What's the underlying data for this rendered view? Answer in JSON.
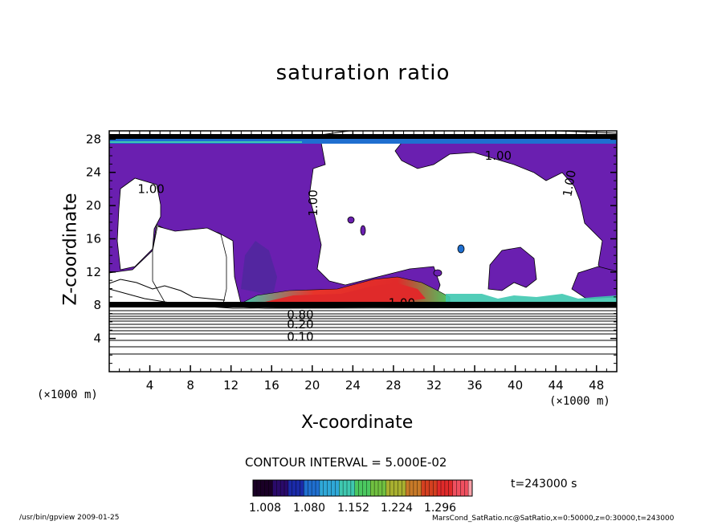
{
  "chart_data": {
    "type": "heatmap",
    "title": "saturation ratio",
    "xlabel": "X-coordinate",
    "ylabel": "Z-coordinate",
    "x_unit": "(×1000 m)",
    "y_unit": "(×1000 m)",
    "xlim": [
      0,
      50
    ],
    "ylim": [
      0,
      29
    ],
    "x_ticks": [
      "4",
      "8",
      "12",
      "16",
      "20",
      "24",
      "28",
      "32",
      "36",
      "40",
      "44",
      "48"
    ],
    "y_ticks": [
      "4",
      "8",
      "12",
      "16",
      "20",
      "24",
      "28"
    ],
    "contour_interval": "CONTOUR INTERVAL = 5.000E-02",
    "contour_labels": [
      "1.00",
      "1.00",
      "1.00",
      "1.00",
      "1.00",
      "0.80",
      "0.20",
      "0.10"
    ],
    "colorbar": {
      "ticks": [
        "1.008",
        "1.080",
        "1.152",
        "1.224",
        "1.296"
      ],
      "colors": [
        "#1a0026",
        "#2a0a6a",
        "#1a2aa8",
        "#1f6fd0",
        "#2fa8d8",
        "#3fc8b0",
        "#4bc860",
        "#70c040",
        "#a8b030",
        "#c87a28",
        "#d44020",
        "#e02a2a",
        "#f05060",
        "#f8a0a8"
      ]
    },
    "time_label": "t=243000 s",
    "colors": {
      "purple_region": "#6a1fb0",
      "hot_region": "#e8342a",
      "blue_band": "#1f6fd0"
    }
  },
  "footer": {
    "left": "/usr/bin/gpview   2009-01-25",
    "right": "MarsCond_SatRatio.nc@SatRatio,x=0:50000,z=0:30000,t=243000"
  }
}
